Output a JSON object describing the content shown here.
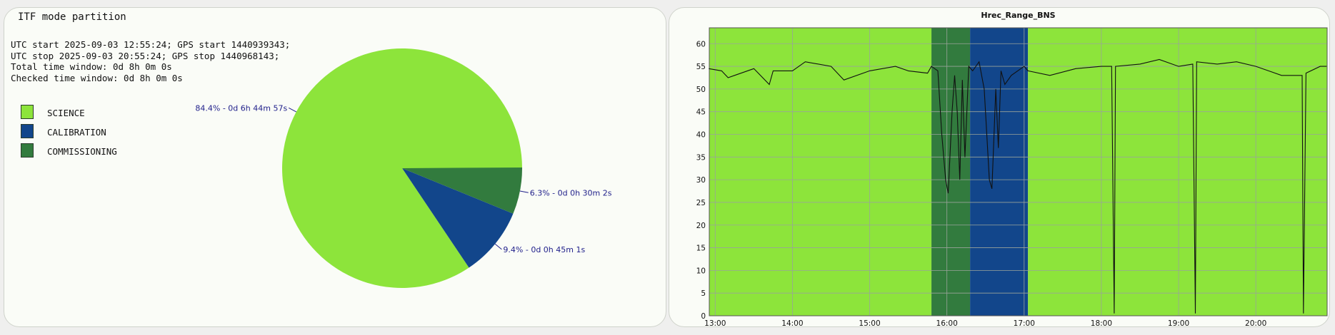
{
  "left_panel": {
    "title": "ITF mode partition",
    "info_lines": [
      "UTC start 2025-09-03 12:55:24; GPS start 1440939343;",
      "UTC stop 2025-09-03 20:55:24; GPS stop 1440968143;",
      "Total time window: 0d 8h 0m 0s",
      "Checked time window: 0d 8h 0m 0s"
    ]
  },
  "colors": {
    "science": "#8de43b",
    "calibration": "#12468b",
    "commissioning": "#327b3e",
    "label_text": "#1f1f8a",
    "range_line": "#111111"
  },
  "chart_data": [
    {
      "type": "pie",
      "title": "ITF mode partition",
      "legend_position": "left",
      "slices": [
        {
          "name": "SCIENCE",
          "percent": 84.4,
          "label": "84.4% - 0d 6h 44m 57s",
          "color": "#8de43b"
        },
        {
          "name": "CALIBRATION",
          "percent": 9.4,
          "label": "9.4% - 0d 0h 45m 1s",
          "color": "#12468b"
        },
        {
          "name": "COMMISSIONING",
          "percent": 6.3,
          "label": "6.3% - 0d 0h 30m 2s",
          "color": "#327b3e"
        }
      ]
    },
    {
      "type": "line",
      "title": "Hrec_Range_BNS",
      "xlabel": "",
      "ylabel": "",
      "ylim": [
        0,
        63.5
      ],
      "xlim": [
        "12:55:24",
        "20:55:24"
      ],
      "grid": true,
      "y_ticks": [
        0,
        5,
        10,
        15,
        20,
        25,
        30,
        35,
        40,
        45,
        50,
        55,
        60
      ],
      "x_ticks": [
        "13:00",
        "14:00",
        "15:00",
        "16:00",
        "17:00",
        "18:00",
        "19:00",
        "20:00"
      ],
      "mode_bands": [
        {
          "mode": "SCIENCE",
          "start": "12:55:24",
          "end": "15:48:00",
          "color": "#8de43b"
        },
        {
          "mode": "COMMISSIONING",
          "start": "15:48:00",
          "end": "16:18:00",
          "color": "#327b3e"
        },
        {
          "mode": "CALIBRATION",
          "start": "16:18:00",
          "end": "17:03:00",
          "color": "#12468b"
        },
        {
          "mode": "SCIENCE",
          "start": "17:03:00",
          "end": "20:55:24",
          "color": "#8de43b"
        }
      ],
      "series": [
        {
          "points": [
            [
              "12:55",
              54.5
            ],
            [
              "13:05",
              54.0
            ],
            [
              "13:10",
              52.5
            ],
            [
              "13:15",
              53.0
            ],
            [
              "13:30",
              54.5
            ],
            [
              "13:42",
              51.0
            ],
            [
              "13:45",
              54.0
            ],
            [
              "14:00",
              54.0
            ],
            [
              "14:10",
              56.0
            ],
            [
              "14:30",
              55.0
            ],
            [
              "14:40",
              52.0
            ],
            [
              "15:00",
              54.0
            ],
            [
              "15:20",
              55.0
            ],
            [
              "15:30",
              54.0
            ],
            [
              "15:45",
              53.5
            ],
            [
              "15:48",
              55.0
            ],
            [
              "15:53",
              54.0
            ],
            [
              "15:56",
              40.0
            ],
            [
              "15:59",
              30.0
            ],
            [
              "16:01",
              27.0
            ],
            [
              "16:04",
              45.0
            ],
            [
              "16:06",
              53.0
            ],
            [
              "16:08",
              45.0
            ],
            [
              "16:10",
              30.0
            ],
            [
              "16:12",
              52.0
            ],
            [
              "16:14",
              35.0
            ],
            [
              "16:17",
              55.0
            ],
            [
              "16:20",
              54.0
            ],
            [
              "16:25",
              56.0
            ],
            [
              "16:29",
              50.0
            ],
            [
              "16:31",
              40.0
            ],
            [
              "16:33",
              30.0
            ],
            [
              "16:35",
              28.0
            ],
            [
              "16:38",
              50.0
            ],
            [
              "16:40",
              37.0
            ],
            [
              "16:42",
              54.0
            ],
            [
              "16:45",
              51.0
            ],
            [
              "16:50",
              53.0
            ],
            [
              "17:00",
              55.0
            ],
            [
              "17:03",
              54.0
            ],
            [
              "17:20",
              53.0
            ],
            [
              "17:40",
              54.5
            ],
            [
              "18:00",
              55.0
            ],
            [
              "18:08",
              55.0
            ],
            [
              "18:10",
              0.5
            ],
            [
              "18:11",
              55.0
            ],
            [
              "18:30",
              55.5
            ],
            [
              "18:45",
              56.5
            ],
            [
              "19:00",
              55.0
            ],
            [
              "19:11",
              55.5
            ],
            [
              "19:13",
              0.5
            ],
            [
              "19:14",
              56.0
            ],
            [
              "19:30",
              55.5
            ],
            [
              "19:45",
              56.0
            ],
            [
              "20:00",
              55.0
            ],
            [
              "20:20",
              53.0
            ],
            [
              "20:36",
              53.0
            ],
            [
              "20:37",
              0.5
            ],
            [
              "20:39",
              53.5
            ],
            [
              "20:50",
              55.0
            ],
            [
              "20:55",
              55.0
            ]
          ]
        }
      ]
    }
  ]
}
